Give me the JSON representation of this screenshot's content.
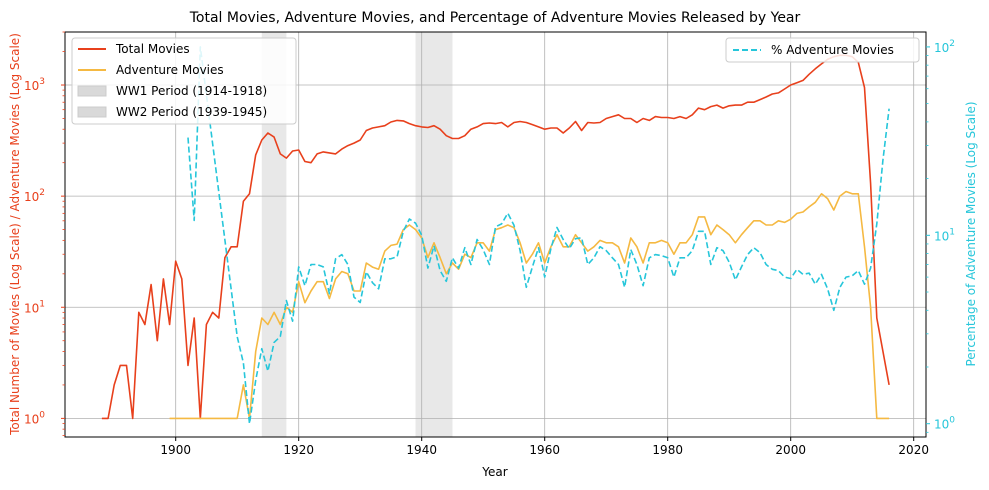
{
  "chart_data": {
    "type": "line",
    "title": "Total Movies, Adventure Movies, and Percentage of Adventure Movies Released by Year",
    "xlabel": "Year",
    "ylabel_left": "Total Number of Movies (Log Scale) / Adventure Movies (Log Scale)",
    "ylabel_right": "Percentage of Adventure Movies (Log Scale)",
    "xlim": [
      1882,
      2022
    ],
    "ylim_left": [
      0.68,
      3000
    ],
    "ylim_right": [
      0.85,
      120
    ],
    "yscale_left": "log",
    "yscale_right": "log",
    "x_ticks": [
      1900,
      1920,
      1940,
      1960,
      1980,
      2000,
      2020
    ],
    "y_ticks_left": [
      {
        "value": 1,
        "base": "10",
        "exp": "0"
      },
      {
        "value": 10,
        "base": "10",
        "exp": "1"
      },
      {
        "value": 100,
        "base": "10",
        "exp": "2"
      },
      {
        "value": 1000,
        "base": "10",
        "exp": "3"
      }
    ],
    "y_ticks_right": [
      {
        "value": 1,
        "base": "10",
        "exp": "0"
      },
      {
        "value": 10,
        "base": "10",
        "exp": "1"
      },
      {
        "value": 100,
        "base": "10",
        "exp": "2"
      }
    ],
    "grid": true,
    "left_axis_color": "#e8401c",
    "right_axis_color": "#26c6da",
    "legend_left": {
      "placement": "upper-left",
      "entries": [
        {
          "label": "Total Movies",
          "kind": "line",
          "color": "#e8401c"
        },
        {
          "label": "Adventure Movies",
          "kind": "line",
          "color": "#f5b942"
        },
        {
          "label": "WW1 Period (1914-1918)",
          "kind": "patch",
          "color": "#d9d9d9"
        },
        {
          "label": "WW2 Period (1939-1945)",
          "kind": "patch",
          "color": "#d9d9d9"
        }
      ]
    },
    "legend_right": {
      "placement": "upper-right",
      "entries": [
        {
          "label": "% Adventure Movies",
          "kind": "dashed",
          "color": "#26c6da"
        }
      ]
    },
    "spans": [
      {
        "label": "WW1 Period (1914-1918)",
        "start": 1914,
        "end": 1918,
        "color": "#d9d9d9"
      },
      {
        "label": "WW2 Period (1939-1945)",
        "start": 1939,
        "end": 1945,
        "color": "#d9d9d9"
      }
    ],
    "series": [
      {
        "name": "Total Movies",
        "axis": "left",
        "color": "#e8401c",
        "style": "solid",
        "x": [
          1888,
          1889,
          1890,
          1891,
          1892,
          1893,
          1894,
          1895,
          1896,
          1897,
          1898,
          1899,
          1900,
          1901,
          1902,
          1903,
          1904,
          1905,
          1906,
          1907,
          1908,
          1909,
          1910,
          1911,
          1912,
          1913,
          1914,
          1915,
          1916,
          1917,
          1918,
          1919,
          1920,
          1921,
          1922,
          1923,
          1924,
          1925,
          1926,
          1927,
          1928,
          1929,
          1930,
          1931,
          1932,
          1933,
          1934,
          1935,
          1936,
          1937,
          1938,
          1939,
          1940,
          1941,
          1942,
          1943,
          1944,
          1945,
          1946,
          1947,
          1948,
          1949,
          1950,
          1951,
          1952,
          1953,
          1954,
          1955,
          1956,
          1957,
          1958,
          1959,
          1960,
          1961,
          1962,
          1963,
          1964,
          1965,
          1966,
          1967,
          1968,
          1969,
          1970,
          1971,
          1972,
          1973,
          1974,
          1975,
          1976,
          1977,
          1978,
          1979,
          1980,
          1981,
          1982,
          1983,
          1984,
          1985,
          1986,
          1987,
          1988,
          1989,
          1990,
          1991,
          1992,
          1993,
          1994,
          1995,
          1996,
          1997,
          1998,
          1999,
          2000,
          2001,
          2002,
          2003,
          2004,
          2005,
          2006,
          2007,
          2008,
          2009,
          2010,
          2011,
          2012,
          2013,
          2014,
          2016
        ],
        "y": [
          1,
          1,
          2,
          3,
          3,
          1,
          9,
          7,
          16,
          5,
          18,
          7,
          26,
          18,
          3,
          8,
          1,
          7,
          9,
          8,
          28,
          35,
          35,
          90,
          105,
          235,
          320,
          370,
          340,
          240,
          220,
          255,
          260,
          205,
          200,
          240,
          250,
          245,
          240,
          265,
          285,
          300,
          320,
          390,
          410,
          420,
          430,
          465,
          480,
          475,
          450,
          430,
          420,
          415,
          430,
          400,
          350,
          330,
          330,
          350,
          400,
          420,
          450,
          455,
          450,
          460,
          420,
          460,
          470,
          460,
          440,
          420,
          400,
          410,
          410,
          370,
          410,
          470,
          390,
          460,
          455,
          460,
          500,
          520,
          540,
          500,
          500,
          460,
          500,
          480,
          520,
          510,
          510,
          500,
          520,
          500,
          540,
          620,
          600,
          640,
          660,
          620,
          650,
          660,
          660,
          700,
          700,
          740,
          780,
          830,
          850,
          920,
          1000,
          1050,
          1100,
          1250,
          1400,
          1550,
          1700,
          1800,
          1850,
          1850,
          1800,
          1600,
          950,
          130,
          8,
          2
        ]
      },
      {
        "name": "Adventure Movies",
        "axis": "left",
        "color": "#f5b942",
        "style": "solid",
        "x": [
          1899,
          1900,
          1901,
          1902,
          1903,
          1904,
          1905,
          1906,
          1907,
          1908,
          1909,
          1910,
          1911,
          1912,
          1913,
          1914,
          1915,
          1916,
          1917,
          1918,
          1919,
          1920,
          1921,
          1922,
          1923,
          1924,
          1925,
          1926,
          1927,
          1928,
          1929,
          1930,
          1931,
          1932,
          1933,
          1934,
          1935,
          1936,
          1937,
          1938,
          1939,
          1940,
          1941,
          1942,
          1943,
          1944,
          1945,
          1946,
          1947,
          1948,
          1949,
          1950,
          1951,
          1952,
          1953,
          1954,
          1955,
          1956,
          1957,
          1958,
          1959,
          1960,
          1961,
          1962,
          1963,
          1964,
          1965,
          1966,
          1967,
          1968,
          1969,
          1970,
          1971,
          1972,
          1973,
          1974,
          1975,
          1976,
          1977,
          1978,
          1979,
          1980,
          1981,
          1982,
          1983,
          1984,
          1985,
          1986,
          1987,
          1988,
          1989,
          1990,
          1991,
          1992,
          1993,
          1994,
          1995,
          1996,
          1997,
          1998,
          1999,
          2000,
          2001,
          2002,
          2003,
          2004,
          2005,
          2006,
          2007,
          2008,
          2009,
          2010,
          2011,
          2012,
          2013,
          2014,
          2015,
          2016
        ],
        "y": [
          1,
          1,
          1,
          1,
          1,
          1,
          1,
          1,
          1,
          1,
          1,
          1,
          2,
          1,
          4,
          8,
          7,
          9,
          7,
          10,
          9,
          17,
          11,
          14,
          17,
          17,
          12,
          18,
          21,
          20,
          14,
          14,
          25,
          23,
          22,
          32,
          36,
          37,
          50,
          55,
          50,
          42,
          28,
          38,
          28,
          20,
          25,
          22,
          30,
          28,
          38,
          38,
          32,
          50,
          52,
          55,
          52,
          38,
          25,
          30,
          38,
          25,
          35,
          45,
          35,
          35,
          45,
          38,
          32,
          35,
          40,
          38,
          38,
          35,
          25,
          42,
          35,
          25,
          38,
          38,
          40,
          38,
          30,
          38,
          38,
          45,
          65,
          65,
          45,
          55,
          50,
          45,
          38,
          45,
          52,
          60,
          60,
          55,
          55,
          60,
          58,
          62,
          70,
          72,
          80,
          88,
          105,
          95,
          75,
          100,
          110,
          105,
          105,
          35,
          10,
          1,
          1,
          1
        ]
      },
      {
        "name": "% Adventure Movies",
        "axis": "right",
        "color": "#26c6da",
        "style": "dashed",
        "x": [
          1902,
          1903,
          1904,
          1910,
          1911,
          1912,
          1913,
          1914,
          1915,
          1916,
          1917,
          1918,
          1919,
          1920,
          1921,
          1922,
          1923,
          1924,
          1925,
          1926,
          1927,
          1928,
          1929,
          1930,
          1931,
          1932,
          1933,
          1934,
          1935,
          1936,
          1937,
          1938,
          1939,
          1940,
          1941,
          1942,
          1943,
          1944,
          1945,
          1946,
          1947,
          1948,
          1949,
          1950,
          1951,
          1952,
          1953,
          1954,
          1955,
          1956,
          1957,
          1958,
          1959,
          1960,
          1961,
          1962,
          1963,
          1964,
          1965,
          1966,
          1967,
          1968,
          1969,
          1970,
          1971,
          1972,
          1973,
          1974,
          1975,
          1976,
          1977,
          1978,
          1979,
          1980,
          1981,
          1982,
          1983,
          1984,
          1985,
          1986,
          1987,
          1988,
          1989,
          1990,
          1991,
          1992,
          1993,
          1994,
          1995,
          1996,
          1997,
          1998,
          1999,
          2000,
          2001,
          2002,
          2003,
          2004,
          2005,
          2006,
          2007,
          2008,
          2009,
          2010,
          2011,
          2012,
          2013,
          2014,
          2015,
          2016
        ],
        "y": [
          33,
          12,
          100,
          2.9,
          2.1,
          1.0,
          1.7,
          2.5,
          1.9,
          2.7,
          2.9,
          4.5,
          3.5,
          6.8,
          5.4,
          7,
          7,
          6.8,
          4.9,
          7.5,
          7.9,
          7,
          4.7,
          4.4,
          6.4,
          5.6,
          5.2,
          7.5,
          7.5,
          7.7,
          10.5,
          12.2,
          11.6,
          10,
          6.7,
          8.8,
          6.5,
          5.7,
          7.6,
          6.7,
          8.6,
          7,
          9.5,
          8.4,
          7,
          11.1,
          11.5,
          13.1,
          11.3,
          8.3,
          5.3,
          6.8,
          8.6,
          6,
          8.5,
          11,
          9.5,
          8.5,
          9.6,
          9.7,
          7,
          7.6,
          8.7,
          8.3,
          7.6,
          7,
          5.3,
          8.4,
          7,
          5.4,
          7.6,
          7.9,
          7.8,
          7.6,
          6,
          7.6,
          7.6,
          8.3,
          10.5,
          10.5,
          7,
          8.6,
          8.3,
          7.2,
          5.8,
          6.8,
          7.9,
          8.6,
          8.1,
          7,
          6.6,
          6.5,
          6,
          5.9,
          6.6,
          6.2,
          6.3,
          5.5,
          6.2,
          5.2,
          4,
          5.3,
          6,
          6.1,
          6.5,
          5.5,
          6.7,
          11.5,
          25,
          47
        ]
      }
    ]
  }
}
